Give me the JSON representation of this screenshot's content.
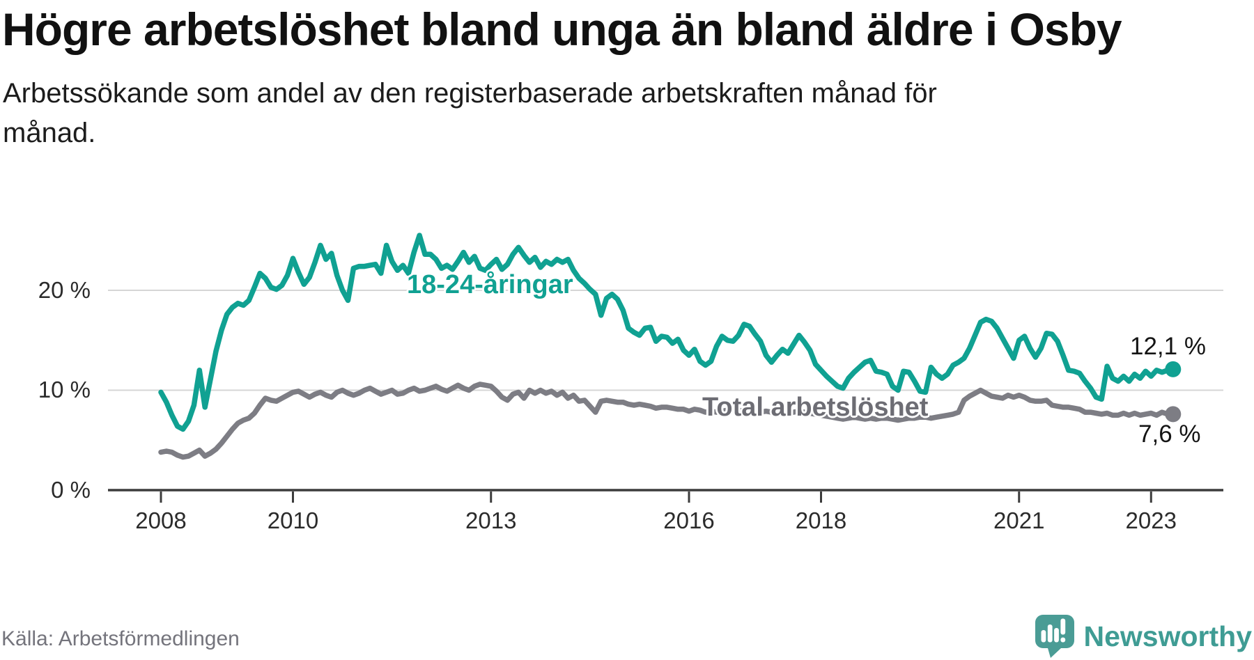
{
  "title": "Högre arbetslöshet bland unga än bland äldre i Osby",
  "subtitle": {
    "full": "Arbetssökande som andel av den registerbaserade arbetskraften månad för månad.",
    "line1": "Arbetssökande som andel av den registerbaserade arbetskraften månad för",
    "line2": "månad."
  },
  "source": "Källa: Arbetsförmedlingen",
  "brand": {
    "name": "Newsworthy",
    "icon": "newsworthy-speech-bubble-bar-chart-icon",
    "icon_color": "#4a9c95",
    "text_color": "#3f9c94"
  },
  "colors": {
    "background": "#ffffff",
    "youth_line": "#10a192",
    "total_line": "#7d7d84",
    "total_label": "#6d6d74",
    "grid": "#d6d6d6",
    "axis": "#3c3c3c",
    "tick_text": "#2b2b2b",
    "value_text": "#141414"
  },
  "chart_data": {
    "type": "line",
    "freq": "monthly",
    "x_start": "2008-01",
    "x_end": "2023-05",
    "x_tick_labels": [
      "2008",
      "2010",
      "2013",
      "2016",
      "2018",
      "2021",
      "2023"
    ],
    "y_tick_labels": [
      "0 %",
      "10 %",
      "20 %"
    ],
    "y_tick_values": [
      0,
      10,
      20
    ],
    "ylim": [
      0,
      27
    ],
    "grid": "horizontal",
    "legend_position": "inline-labels",
    "series": [
      {
        "name": "18-24-åringar",
        "color": "#10a192",
        "end_label": "12,1 %",
        "end_value": 12.1,
        "values": [
          9.8,
          8.8,
          7.5,
          6.4,
          6.1,
          6.9,
          8.5,
          12.0,
          8.3,
          11.1,
          13.9,
          16.0,
          17.6,
          18.3,
          18.7,
          18.5,
          19.0,
          20.3,
          21.7,
          21.2,
          20.3,
          20.1,
          20.5,
          21.5,
          23.2,
          21.8,
          20.6,
          21.3,
          22.8,
          24.5,
          23.1,
          23.7,
          21.5,
          20.0,
          19.0,
          22.2,
          22.4,
          22.4,
          22.5,
          22.6,
          21.7,
          24.5,
          22.9,
          22.0,
          22.5,
          21.7,
          23.8,
          25.5,
          23.6,
          23.6,
          23.1,
          22.2,
          22.5,
          22.1,
          22.9,
          23.8,
          22.8,
          23.4,
          22.2,
          22.0,
          22.6,
          23.1,
          22.1,
          22.6,
          23.6,
          24.3,
          23.5,
          22.8,
          23.3,
          22.3,
          22.9,
          22.6,
          23.1,
          22.8,
          23.1,
          22.0,
          21.2,
          20.7,
          20.1,
          19.6,
          17.5,
          19.2,
          19.6,
          19.1,
          18.0,
          16.2,
          15.8,
          15.5,
          16.2,
          16.3,
          14.9,
          15.4,
          15.3,
          14.7,
          15.1,
          14.0,
          13.5,
          14.1,
          12.9,
          12.5,
          12.9,
          14.4,
          15.4,
          15.0,
          14.9,
          15.5,
          16.6,
          16.4,
          15.6,
          14.9,
          13.5,
          12.8,
          13.5,
          14.1,
          13.7,
          14.6,
          15.5,
          14.8,
          14.0,
          12.6,
          12.0,
          11.4,
          10.9,
          10.4,
          10.2,
          11.2,
          11.8,
          12.3,
          12.8,
          13.0,
          11.9,
          11.8,
          11.6,
          10.4,
          10.0,
          11.9,
          11.8,
          10.9,
          9.9,
          9.8,
          12.3,
          11.6,
          11.2,
          11.6,
          12.5,
          12.8,
          13.2,
          14.2,
          15.5,
          16.8,
          17.1,
          16.9,
          16.2,
          15.2,
          14.2,
          13.2,
          15.0,
          15.4,
          14.2,
          13.3,
          14.2,
          15.7,
          15.6,
          14.9,
          13.5,
          12.0,
          11.9,
          11.7,
          10.9,
          10.2,
          9.3,
          9.1,
          12.4,
          11.2,
          10.9,
          11.4,
          10.9,
          11.6,
          11.2,
          11.9,
          11.4,
          12.0,
          11.8,
          12.0,
          12.1
        ]
      },
      {
        "name": "Total arbetslöshet",
        "color": "#7d7d84",
        "end_label": "7,6 %",
        "end_value": 7.6,
        "values": [
          3.8,
          3.9,
          3.8,
          3.5,
          3.3,
          3.4,
          3.7,
          4.0,
          3.4,
          3.7,
          4.1,
          4.7,
          5.4,
          6.1,
          6.7,
          7.0,
          7.2,
          7.7,
          8.5,
          9.2,
          9.0,
          8.9,
          9.2,
          9.5,
          9.8,
          9.9,
          9.6,
          9.3,
          9.6,
          9.8,
          9.5,
          9.3,
          9.8,
          10.0,
          9.7,
          9.5,
          9.7,
          10.0,
          10.2,
          9.9,
          9.6,
          9.8,
          10.0,
          9.6,
          9.7,
          10.0,
          10.2,
          9.9,
          10.0,
          10.2,
          10.4,
          10.1,
          9.9,
          10.2,
          10.5,
          10.2,
          10.0,
          10.4,
          10.6,
          10.5,
          10.4,
          9.9,
          9.3,
          9.0,
          9.6,
          9.8,
          9.2,
          10.0,
          9.7,
          10.0,
          9.7,
          9.9,
          9.5,
          9.8,
          9.2,
          9.5,
          8.9,
          9.0,
          8.4,
          7.8,
          8.9,
          9.0,
          8.9,
          8.8,
          8.8,
          8.6,
          8.5,
          8.6,
          8.5,
          8.4,
          8.2,
          8.3,
          8.3,
          8.2,
          8.1,
          8.1,
          7.9,
          8.1,
          8.0,
          7.8,
          7.9,
          7.8,
          7.9,
          8.0,
          8.1,
          8.0,
          7.9,
          8.0,
          7.9,
          7.8,
          7.9,
          7.8,
          7.7,
          7.8,
          7.7,
          7.8,
          7.9,
          7.8,
          7.7,
          7.6,
          7.5,
          7.4,
          7.3,
          7.2,
          7.1,
          7.2,
          7.3,
          7.2,
          7.1,
          7.2,
          7.1,
          7.2,
          7.2,
          7.1,
          7.0,
          7.1,
          7.2,
          7.2,
          7.3,
          7.3,
          7.2,
          7.3,
          7.4,
          7.5,
          7.6,
          7.8,
          9.0,
          9.4,
          9.7,
          10.0,
          9.7,
          9.4,
          9.3,
          9.2,
          9.5,
          9.3,
          9.5,
          9.3,
          9.0,
          8.9,
          8.9,
          9.0,
          8.5,
          8.4,
          8.3,
          8.3,
          8.2,
          8.1,
          7.8,
          7.8,
          7.7,
          7.6,
          7.7,
          7.5,
          7.5,
          7.7,
          7.5,
          7.7,
          7.5,
          7.6,
          7.7,
          7.5,
          7.8,
          7.6,
          7.6
        ]
      }
    ]
  }
}
